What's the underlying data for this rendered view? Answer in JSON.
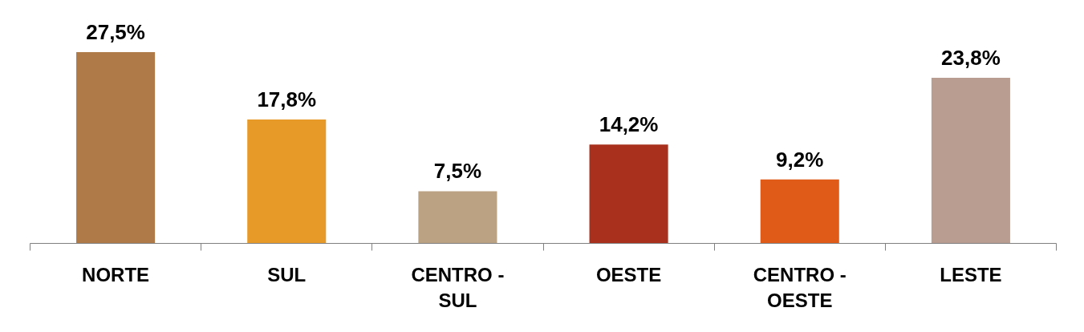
{
  "chart_data": {
    "type": "bar",
    "categories": [
      "NORTE",
      "SUL",
      "CENTRO - SUL",
      "OESTE",
      "CENTRO - OESTE",
      "LESTE"
    ],
    "values": [
      27.5,
      17.8,
      7.5,
      14.2,
      9.2,
      23.8
    ],
    "colors": [
      "#b07a48",
      "#e89a28",
      "#bba283",
      "#a8301c",
      "#e05a18",
      "#b89d90"
    ],
    "value_labels": [
      "27,5%",
      "17,8%",
      "7,5%",
      "14,2%",
      "9,2%",
      "23,8%"
    ],
    "data_labels": true
  }
}
